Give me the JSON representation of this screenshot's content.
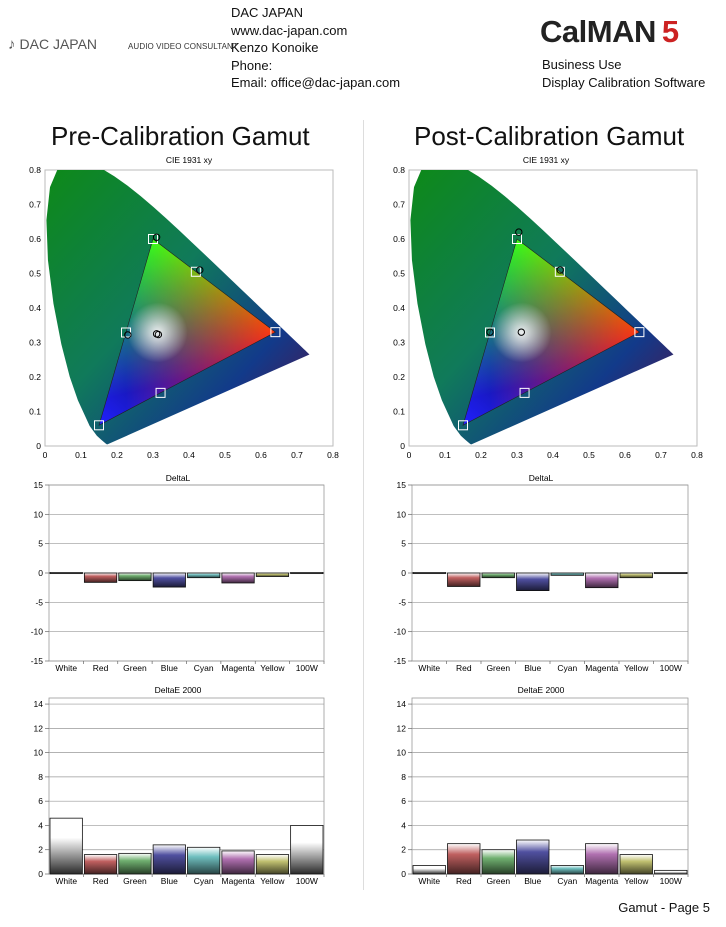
{
  "header": {
    "company": "DAC JAPAN",
    "website": "www.dac-japan.com",
    "contact": "Kenzo Konoike",
    "phone": "Phone:",
    "email": "Email: office@dac-japan.com",
    "logo_text": "DAC JAPAN",
    "logo_subtext": "AUDIO VIDEO CONSULTANT",
    "brand_word": "CalMAN",
    "brand_number": "5",
    "license": "Business Use",
    "product": "Display Calibration Software"
  },
  "panels": [
    {
      "title": "Pre-Calibration Gamut"
    },
    {
      "title": "Post-Calibration Gamut"
    }
  ],
  "footer": {
    "page_label": "Gamut - Page 5"
  },
  "colors": {
    "White": "#ffffff",
    "Red": "#c06060",
    "Green": "#70b070",
    "Blue": "#5050a0",
    "Cyan": "#70c0c0",
    "Magenta": "#b070b0",
    "Yellow": "#c0c070",
    "100W": "#ffffff"
  },
  "chart_data": [
    {
      "type": "scatter",
      "panel": 0,
      "title": "CIE 1931 xy",
      "xlim": [
        0,
        0.8
      ],
      "ylim": [
        0,
        0.8
      ],
      "x_ticks": [
        0,
        0.1,
        0.2,
        0.3,
        0.4,
        0.5,
        0.6,
        0.7,
        0.8
      ],
      "y_ticks": [
        0,
        0.1,
        0.2,
        0.3,
        0.4,
        0.5,
        0.6,
        0.7,
        0.8
      ],
      "targets": [
        {
          "name": "Red",
          "x": 0.64,
          "y": 0.33
        },
        {
          "name": "Green",
          "x": 0.3,
          "y": 0.6
        },
        {
          "name": "Blue",
          "x": 0.15,
          "y": 0.06
        },
        {
          "name": "Cyan",
          "x": 0.225,
          "y": 0.329
        },
        {
          "name": "Magenta",
          "x": 0.321,
          "y": 0.154
        },
        {
          "name": "Yellow",
          "x": 0.419,
          "y": 0.505
        },
        {
          "name": "White",
          "x": 0.3127,
          "y": 0.329
        }
      ],
      "measured": [
        {
          "name": "Green",
          "x": 0.31,
          "y": 0.605
        },
        {
          "name": "Yellow",
          "x": 0.43,
          "y": 0.51
        },
        {
          "name": "Cyan",
          "x": 0.23,
          "y": 0.322
        },
        {
          "name": "White",
          "x": 0.31,
          "y": 0.325
        },
        {
          "name": "100W",
          "x": 0.315,
          "y": 0.323
        }
      ]
    },
    {
      "type": "scatter",
      "panel": 1,
      "title": "CIE 1931 xy",
      "xlim": [
        0,
        0.8
      ],
      "ylim": [
        0,
        0.8
      ],
      "x_ticks": [
        0,
        0.1,
        0.2,
        0.3,
        0.4,
        0.5,
        0.6,
        0.7,
        0.8
      ],
      "y_ticks": [
        0,
        0.1,
        0.2,
        0.3,
        0.4,
        0.5,
        0.6,
        0.7,
        0.8
      ],
      "targets": [
        {
          "name": "Red",
          "x": 0.64,
          "y": 0.33
        },
        {
          "name": "Green",
          "x": 0.3,
          "y": 0.6
        },
        {
          "name": "Blue",
          "x": 0.15,
          "y": 0.06
        },
        {
          "name": "Cyan",
          "x": 0.225,
          "y": 0.329
        },
        {
          "name": "Magenta",
          "x": 0.321,
          "y": 0.154
        },
        {
          "name": "Yellow",
          "x": 0.419,
          "y": 0.505
        },
        {
          "name": "White",
          "x": 0.3127,
          "y": 0.329
        }
      ],
      "measured": [
        {
          "name": "Green",
          "x": 0.305,
          "y": 0.62
        },
        {
          "name": "Yellow",
          "x": 0.42,
          "y": 0.51
        },
        {
          "name": "Cyan",
          "x": 0.225,
          "y": 0.33
        },
        {
          "name": "White",
          "x": 0.312,
          "y": 0.33
        }
      ]
    },
    {
      "type": "bar",
      "panel": 0,
      "title": "DeltaL",
      "categories": [
        "White",
        "Red",
        "Green",
        "Blue",
        "Cyan",
        "Magenta",
        "Yellow",
        "100W"
      ],
      "values": [
        0.1,
        -1.6,
        -1.3,
        -2.4,
        -0.8,
        -1.7,
        -0.6,
        0.1
      ],
      "ylim": [
        -15,
        15
      ],
      "y_ticks": [
        15,
        10,
        5,
        0,
        -5,
        -10,
        -15
      ]
    },
    {
      "type": "bar",
      "panel": 1,
      "title": "DeltaL",
      "categories": [
        "White",
        "Red",
        "Green",
        "Blue",
        "Cyan",
        "Magenta",
        "Yellow",
        "100W"
      ],
      "values": [
        0.1,
        -2.3,
        -0.8,
        -3.0,
        -0.4,
        -2.5,
        -0.8,
        0.1
      ],
      "ylim": [
        -15,
        15
      ],
      "y_ticks": [
        15,
        10,
        5,
        0,
        -5,
        -10,
        -15
      ]
    },
    {
      "type": "bar",
      "panel": 0,
      "title": "DeltaE 2000",
      "categories": [
        "White",
        "Red",
        "Green",
        "Blue",
        "Cyan",
        "Magenta",
        "Yellow",
        "100W"
      ],
      "values": [
        4.6,
        1.6,
        1.7,
        2.4,
        2.2,
        1.9,
        1.6,
        4.0
      ],
      "ylim": [
        0,
        14.5
      ],
      "y_ticks": [
        0,
        2,
        4,
        6,
        8,
        10,
        12,
        14
      ]
    },
    {
      "type": "bar",
      "panel": 1,
      "title": "DeltaE 2000",
      "categories": [
        "White",
        "Red",
        "Green",
        "Blue",
        "Cyan",
        "Magenta",
        "Yellow",
        "100W"
      ],
      "values": [
        0.7,
        2.5,
        2.0,
        2.8,
        0.7,
        2.5,
        1.6,
        0.3
      ],
      "ylim": [
        0,
        14.5
      ],
      "y_ticks": [
        0,
        2,
        4,
        6,
        8,
        10,
        12,
        14
      ]
    }
  ]
}
